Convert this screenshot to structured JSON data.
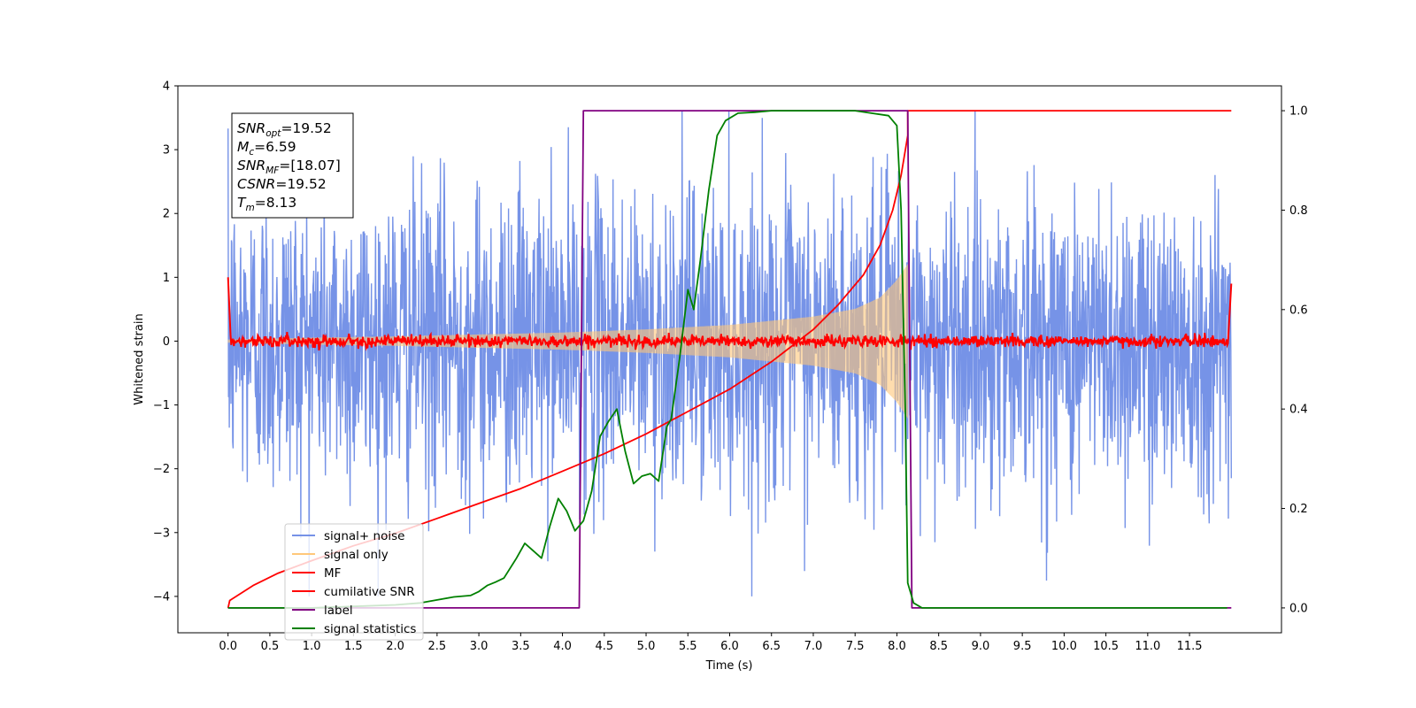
{
  "chart_data": {
    "type": "line",
    "title": "",
    "xlabel": "Time (s)",
    "ylabel": "Whitened strain",
    "ylabel_right": "",
    "xlim": [
      -0.6,
      12.6
    ],
    "ylim": [
      -4.57,
      4.0
    ],
    "ylim_right": [
      -0.05,
      1.05
    ],
    "x_ticks": [
      0.0,
      0.5,
      1.0,
      1.5,
      2.0,
      2.5,
      3.0,
      3.5,
      4.0,
      4.5,
      5.0,
      5.5,
      6.0,
      6.5,
      7.0,
      7.5,
      8.0,
      8.5,
      9.0,
      9.5,
      10.0,
      10.5,
      11.0,
      11.5
    ],
    "x_tick_labels": [
      "0.0",
      "0.5",
      "1.0",
      "1.5",
      "2.0",
      "2.5",
      "3.0",
      "3.5",
      "4.0",
      "4.5",
      "5.0",
      "5.5",
      "6.0",
      "6.5",
      "7.0",
      "7.5",
      "8.0",
      "8.5",
      "9.0",
      "9.5",
      "10.0",
      "10.5",
      "11.0",
      "11.5"
    ],
    "y_ticks": [
      4,
      3,
      2,
      1,
      0,
      -1,
      -2,
      -3,
      -4
    ],
    "y_tick_labels": [
      "4",
      "3",
      "2",
      "1",
      "0",
      "−1",
      "−2",
      "−3",
      "−4"
    ],
    "y_right_ticks": [
      1.0,
      0.8,
      0.6,
      0.4,
      0.2,
      0.0
    ],
    "y_right_tick_labels": [
      "1.0",
      "0.8",
      "0.6",
      "0.4",
      "0.2",
      "0.0"
    ],
    "grid": false,
    "legend_position": "lower-left",
    "annotation": {
      "lines": [
        {
          "symbol": "SNR",
          "sub": "opt",
          "text": "=19.52"
        },
        {
          "symbol": "M",
          "sub": "c",
          "text": "=6.59"
        },
        {
          "symbol": "SNR",
          "sub": "MF",
          "text": "=[18.07]"
        },
        {
          "symbol": "CSNR",
          "sub": "",
          "text": "=19.52"
        },
        {
          "symbol": "T",
          "sub": "m",
          "text": "=8.13"
        }
      ]
    },
    "series": [
      {
        "name": "signal+ noise",
        "axis": "left",
        "color": "#6f8de6",
        "kind": "noise",
        "x_range": [
          0.0,
          12.0
        ],
        "amplitude_typical": 1.2,
        "amplitude_peak": 3.6
      },
      {
        "name": "signal only",
        "axis": "left",
        "color": "#ffc87a",
        "kind": "chirp",
        "x_range": [
          0.0,
          8.13
        ],
        "envelope": {
          "x": [
            0.0,
            1.0,
            2.0,
            3.0,
            4.0,
            5.0,
            6.0,
            7.0,
            7.5,
            7.8,
            8.0,
            8.13
          ],
          "y": [
            0.02,
            0.05,
            0.07,
            0.1,
            0.13,
            0.18,
            0.25,
            0.38,
            0.5,
            0.68,
            0.95,
            1.2
          ]
        }
      },
      {
        "name": "MF",
        "axis": "left",
        "color": "#ff0000",
        "kind": "mf",
        "x_range": [
          0.0,
          12.0
        ],
        "start_value": 1.0,
        "end_value": 0.9
      },
      {
        "name": "cumilative SNR",
        "axis": "right",
        "color": "#ff0000",
        "kind": "line",
        "x": [
          0.0,
          0.02,
          0.3,
          0.6,
          1.0,
          1.5,
          2.0,
          2.5,
          3.0,
          3.5,
          4.0,
          4.5,
          5.0,
          5.5,
          6.0,
          6.5,
          7.0,
          7.3,
          7.6,
          7.8,
          7.95,
          8.05,
          8.1,
          8.13,
          8.13,
          12.0
        ],
        "y": [
          0.0,
          0.015,
          0.045,
          0.07,
          0.095,
          0.125,
          0.15,
          0.18,
          0.21,
          0.24,
          0.275,
          0.31,
          0.35,
          0.395,
          0.44,
          0.495,
          0.56,
          0.61,
          0.67,
          0.73,
          0.8,
          0.87,
          0.92,
          0.95,
          1.0,
          1.0
        ]
      },
      {
        "name": "label",
        "axis": "right",
        "color": "#800080",
        "kind": "line",
        "x": [
          0.0,
          4.2,
          4.25,
          8.13,
          8.18,
          12.0
        ],
        "y": [
          0.0,
          0.0,
          1.0,
          1.0,
          0.0,
          0.0
        ]
      },
      {
        "name": "signal statistics",
        "axis": "right",
        "color": "#008000",
        "kind": "line",
        "x": [
          0.0,
          0.5,
          1.0,
          1.5,
          2.0,
          2.3,
          2.5,
          2.7,
          2.9,
          3.0,
          3.1,
          3.2,
          3.3,
          3.45,
          3.55,
          3.65,
          3.75,
          3.85,
          3.95,
          4.05,
          4.15,
          4.25,
          4.35,
          4.45,
          4.55,
          4.65,
          4.75,
          4.85,
          4.95,
          5.05,
          5.15,
          5.25,
          5.3,
          5.4,
          5.5,
          5.57,
          5.65,
          5.75,
          5.85,
          5.95,
          6.1,
          6.3,
          6.5,
          6.8,
          7.0,
          7.5,
          7.9,
          8.0,
          8.05,
          8.1,
          8.13,
          8.2,
          8.3,
          8.5,
          9.0,
          10.0,
          11.0,
          11.0,
          11.95
        ],
        "y": [
          0.0,
          0.0,
          0.0,
          0.003,
          0.006,
          0.01,
          0.016,
          0.022,
          0.025,
          0.033,
          0.045,
          0.052,
          0.06,
          0.1,
          0.13,
          0.115,
          0.1,
          0.165,
          0.22,
          0.195,
          0.155,
          0.175,
          0.235,
          0.345,
          0.375,
          0.4,
          0.315,
          0.25,
          0.265,
          0.27,
          0.255,
          0.365,
          0.38,
          0.5,
          0.64,
          0.6,
          0.7,
          0.84,
          0.95,
          0.98,
          0.995,
          0.997,
          1.0,
          1.0,
          1.0,
          1.0,
          0.99,
          0.97,
          0.8,
          0.4,
          0.05,
          0.01,
          0.0,
          0.0,
          0.0,
          0.0,
          0.0,
          0.0,
          0.0
        ]
      }
    ]
  }
}
